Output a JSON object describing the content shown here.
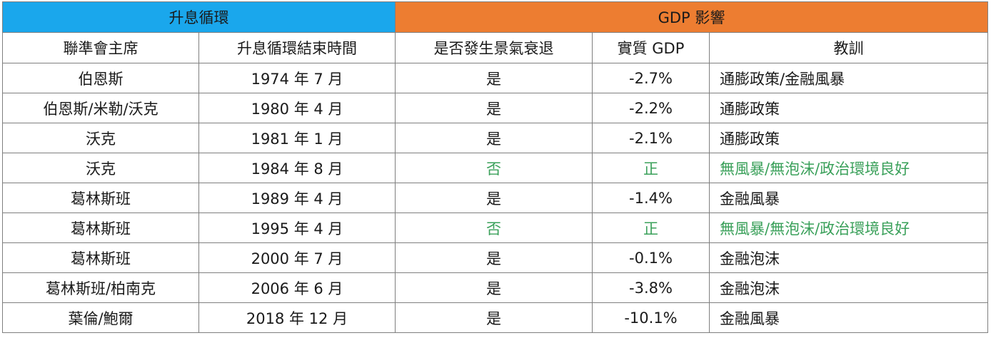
{
  "header_groups": {
    "left": "升息循環",
    "right": "GDP 影響"
  },
  "columns": [
    "聯準會主席",
    "升息循環結束時間",
    "是否發生景氣衰退",
    "實質 GDP",
    "教訓"
  ],
  "rows": [
    {
      "chair": "伯恩斯",
      "end": "1974 年 7 月",
      "recession": "是",
      "gdp": "-2.7%",
      "lesson": "通膨政策/金融風暴",
      "highlight": false
    },
    {
      "chair": "伯恩斯/米勒/沃克",
      "end": "1980 年 4 月",
      "recession": "是",
      "gdp": "-2.2%",
      "lesson": "通膨政策",
      "highlight": false
    },
    {
      "chair": "沃克",
      "end": "1981 年 1 月",
      "recession": "是",
      "gdp": "-2.1%",
      "lesson": "通膨政策",
      "highlight": false
    },
    {
      "chair": "沃克",
      "end": "1984 年 8 月",
      "recession": "否",
      "gdp": "正",
      "lesson": "無風暴/無泡沫/政治環境良好",
      "highlight": true
    },
    {
      "chair": "葛林斯班",
      "end": "1989 年 4 月",
      "recession": "是",
      "gdp": "-1.4%",
      "lesson": "金融風暴",
      "highlight": false
    },
    {
      "chair": "葛林斯班",
      "end": "1995 年 4 月",
      "recession": "否",
      "gdp": "正",
      "lesson": "無風暴/無泡沫/政治環境良好",
      "highlight": true
    },
    {
      "chair": "葛林斯班",
      "end": "2000 年 7 月",
      "recession": "是",
      "gdp": "-0.1%",
      "lesson": "金融泡沫",
      "highlight": false
    },
    {
      "chair": "葛林斯班/柏南克",
      "end": "2006 年 6 月",
      "recession": "是",
      "gdp": "-3.8%",
      "lesson": "金融泡沫",
      "highlight": false
    },
    {
      "chair": "葉倫/鮑爾",
      "end": "2018 年 12 月",
      "recession": "是",
      "gdp": "-10.1%",
      "lesson": "金融風暴",
      "highlight": false
    }
  ],
  "colors": {
    "group_left_bg": "#1aa7ec",
    "group_right_bg": "#ed7d31",
    "highlight_text": "#3aa05a",
    "border": "#7f7f7f"
  }
}
